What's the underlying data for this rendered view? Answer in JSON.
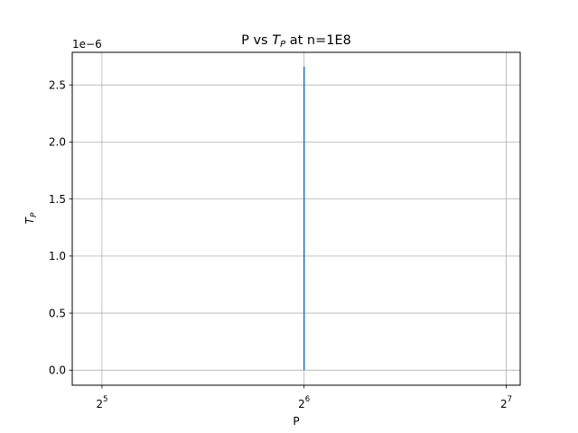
{
  "chart_data": {
    "type": "line",
    "title_prefix": "P vs ",
    "title_math_base": "T",
    "title_math_sub": "P",
    "title_suffix": " at n=1E8",
    "xlabel": "P",
    "ylabel_base": "T",
    "ylabel_sub": "P",
    "x_scale": "log2",
    "xlim": [
      28.9,
      134.3
    ],
    "ylim": [
      -1.32e-07,
      2.786e-06
    ],
    "x_ticks": [
      {
        "value": 32,
        "base": "2",
        "exp": "5"
      },
      {
        "value": 64,
        "base": "2",
        "exp": "6"
      },
      {
        "value": 128,
        "base": "2",
        "exp": "7"
      }
    ],
    "y_ticks": [
      {
        "value": 0.0,
        "label": "0.0"
      },
      {
        "value": 5e-07,
        "label": "0.5"
      },
      {
        "value": 1e-06,
        "label": "1.0"
      },
      {
        "value": 1.5e-06,
        "label": "1.5"
      },
      {
        "value": 2e-06,
        "label": "2.0"
      },
      {
        "value": 2.5e-06,
        "label": "2.5"
      }
    ],
    "y_offset_label": "1e−6",
    "grid": true,
    "series": [
      {
        "color": "#1f77b4",
        "x": [
          64,
          64
        ],
        "y": [
          0.0,
          2.66e-06
        ]
      }
    ]
  }
}
